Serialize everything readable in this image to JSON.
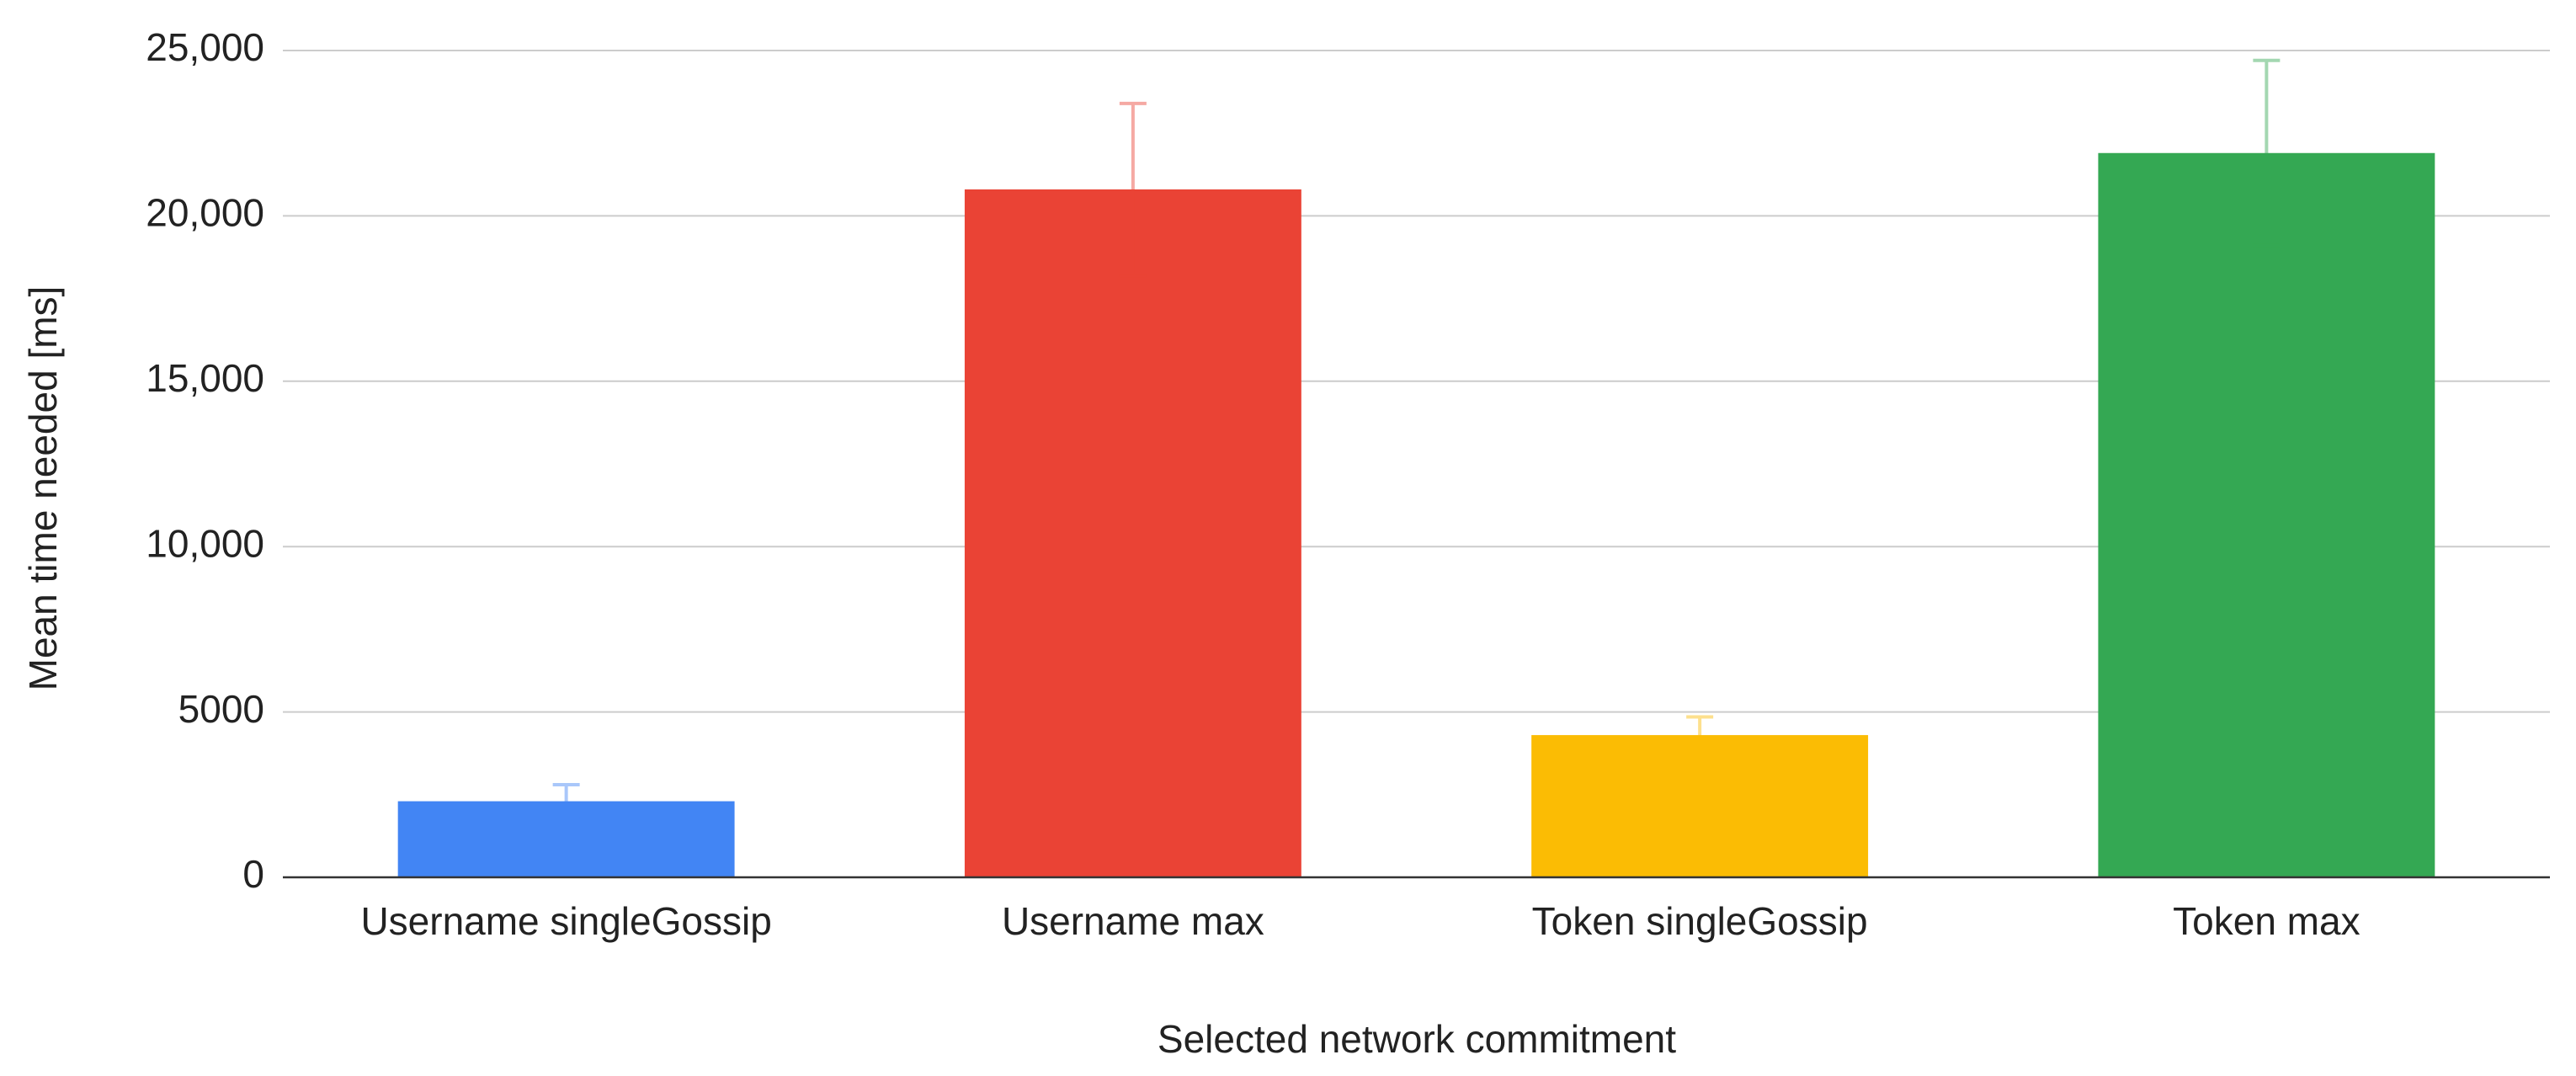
{
  "chart_data": {
    "type": "bar",
    "x_label": "Selected network commitment",
    "y_label": "Mean time needed [ms]",
    "categories": [
      "Username singleGossip",
      "Username max",
      "Token singleGossip",
      "Token max"
    ],
    "values": [
      2300,
      20800,
      4300,
      21900
    ],
    "errors": [
      500,
      2600,
      550,
      2800
    ],
    "colors": [
      "#4285f4",
      "#ea4335",
      "#fbbc04",
      "#34a853"
    ],
    "ylim": [
      0,
      25000
    ],
    "yticks": [
      0,
      5000,
      {
        "value": 10000,
        "label": "10,000"
      },
      {
        "value": 15000,
        "label": "15,000"
      },
      {
        "value": 20000,
        "label": "20,000"
      },
      {
        "value": 25000,
        "label": "25,000"
      }
    ],
    "grid": true
  }
}
